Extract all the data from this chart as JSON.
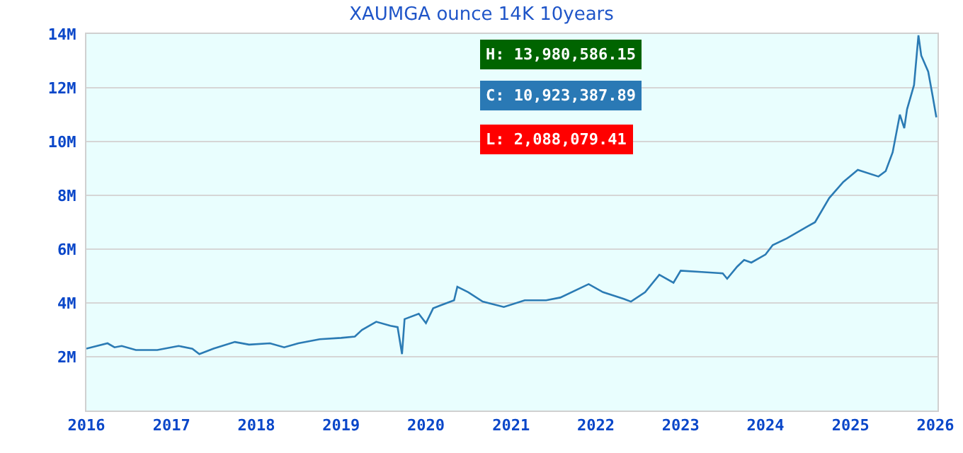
{
  "chart_data": {
    "type": "line",
    "title": "XAUMGA ounce 14K 10years",
    "x": [
      "2016-01",
      "2016-04",
      "2016-05",
      "2016-06",
      "2016-08",
      "2016-11",
      "2017-02",
      "2017-04",
      "2017-05",
      "2017-07",
      "2017-10",
      "2017-12",
      "2018-03",
      "2018-05",
      "2018-07",
      "2018-10",
      "2019-01",
      "2019-03",
      "2019-04",
      "2019-06",
      "2019-08",
      "2019-09",
      "2019-09-20",
      "2019-10",
      "2019-12",
      "2020-01",
      "2020-02",
      "2020-03",
      "2020-05",
      "2020-05-15",
      "2020-07",
      "2020-09",
      "2020-12",
      "2021-03",
      "2021-06",
      "2021-08",
      "2021-12",
      "2022-02",
      "2022-05",
      "2022-06",
      "2022-08",
      "2022-10",
      "2022-12",
      "2023-01",
      "2023-04",
      "2023-07",
      "2023-07-20",
      "2023-09",
      "2023-10",
      "2023-11",
      "2024-01",
      "2024-02",
      "2024-04",
      "2024-07",
      "2024-08",
      "2024-10",
      "2024-12",
      "2025-02",
      "2025-05",
      "2025-06",
      "2025-07",
      "2025-08",
      "2025-08-20",
      "2025-09",
      "2025-10",
      "2025-10-20",
      "2025-11",
      "2025-12",
      "2025-12-20",
      "2026-01-05"
    ],
    "series": [
      {
        "color": "#2b7bb4",
        "values": [
          2300000,
          2500000,
          2350000,
          2400000,
          2250000,
          2250000,
          2400000,
          2300000,
          2100000,
          2300000,
          2550000,
          2450000,
          2500000,
          2350000,
          2500000,
          2650000,
          2700000,
          2750000,
          3000000,
          3300000,
          3150000,
          3100000,
          2100000,
          3400000,
          3600000,
          3250000,
          3800000,
          3900000,
          4100000,
          4600000,
          4400000,
          4050000,
          3850000,
          4100000,
          4100000,
          4200000,
          4700000,
          4400000,
          4150000,
          4050000,
          4400000,
          5050000,
          4750000,
          5200000,
          5150000,
          5100000,
          4900000,
          5350000,
          5600000,
          5500000,
          5800000,
          6150000,
          6400000,
          6850000,
          7000000,
          7900000,
          8500000,
          8950000,
          8700000,
          8900000,
          9600000,
          11000000,
          10500000,
          11200000,
          12100000,
          13950000,
          13200000,
          12600000,
          11700000,
          10900000
        ]
      }
    ],
    "xlim": [
      "2016-01-01",
      "2026-01-10"
    ],
    "xticks": [
      {
        "value": "2016",
        "label": "2016"
      },
      {
        "value": "2017",
        "label": "2017"
      },
      {
        "value": "2018",
        "label": "2018"
      },
      {
        "value": "2019",
        "label": "2019"
      },
      {
        "value": "2020",
        "label": "2020"
      },
      {
        "value": "2021",
        "label": "2021"
      },
      {
        "value": "2022",
        "label": "2022"
      },
      {
        "value": "2023",
        "label": "2023"
      },
      {
        "value": "2024",
        "label": "2024"
      },
      {
        "value": "2025",
        "label": "2025"
      },
      {
        "value": "2026",
        "label": "2026"
      }
    ],
    "ylim": [
      0,
      14000000
    ],
    "yticks": [
      {
        "value": 2000000,
        "label": "2M"
      },
      {
        "value": 4000000,
        "label": "4M"
      },
      {
        "value": 6000000,
        "label": "6M"
      },
      {
        "value": 8000000,
        "label": "8M"
      },
      {
        "value": 10000000,
        "label": "10M"
      },
      {
        "value": 12000000,
        "label": "12M"
      },
      {
        "value": 14000000,
        "label": "14M"
      }
    ],
    "grid": "y",
    "annotations": [
      "H: 13,980,586.15",
      "C: 10,923,387.89",
      "L: 2,088,079.41"
    ]
  }
}
